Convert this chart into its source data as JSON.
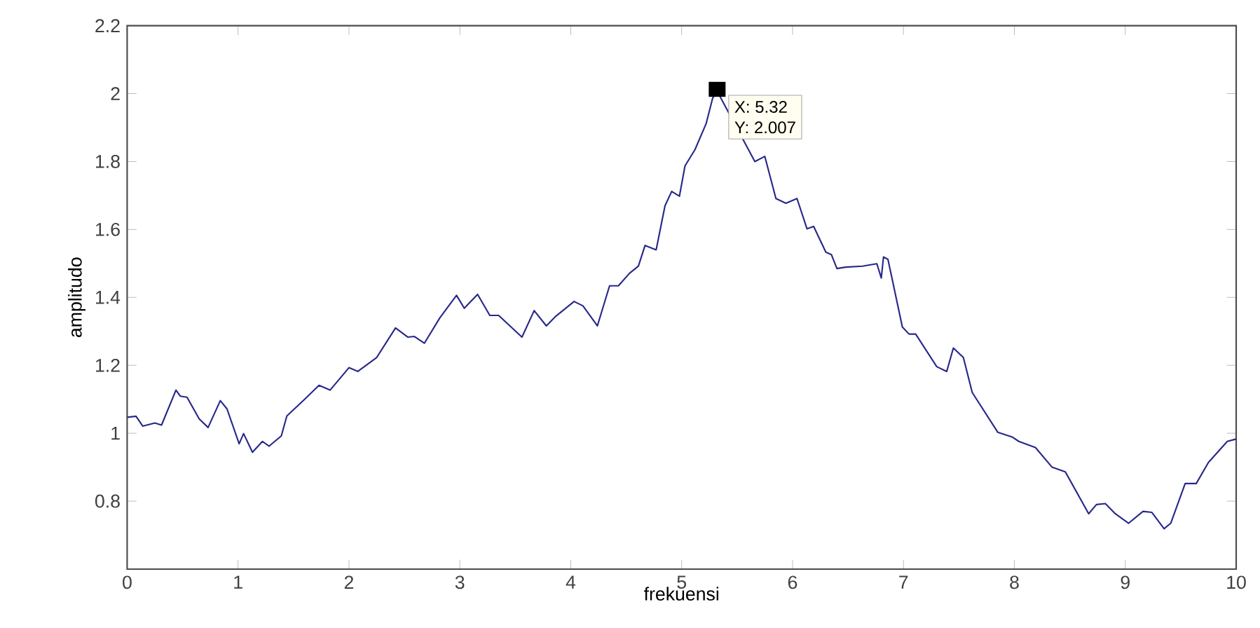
{
  "chart_data": {
    "type": "line",
    "xlabel": "frekuensi",
    "ylabel": "amplitudo",
    "color": "#27288a",
    "x": [
      0,
      0.08,
      0.14,
      0.25,
      0.31,
      0.44,
      0.48,
      0.54,
      0.65,
      0.73,
      0.84,
      0.9,
      1.01,
      1.05,
      1.13,
      1.22,
      1.28,
      1.39,
      1.44,
      1.6,
      1.73,
      1.83,
      2.0,
      2.08,
      2.25,
      2.42,
      2.53,
      2.59,
      2.68,
      2.82,
      2.97,
      3.04,
      3.16,
      3.27,
      3.35,
      3.56,
      3.67,
      3.78,
      3.86,
      4.03,
      4.11,
      4.24,
      4.35,
      4.43,
      4.53,
      4.61,
      4.67,
      4.77,
      4.85,
      4.91,
      4.98,
      5.03,
      5.12,
      5.22,
      5.28,
      5.32,
      5.66,
      5.75,
      5.85,
      5.94,
      6.04,
      6.13,
      6.19,
      6.3,
      6.35,
      6.4,
      6.48,
      6.63,
      6.76,
      6.8,
      6.82,
      6.86,
      6.99,
      7.05,
      7.11,
      7.3,
      7.39,
      7.45,
      7.54,
      7.62,
      7.85,
      7.98,
      8.04,
      8.19,
      8.34,
      8.46,
      8.67,
      8.74,
      8.82,
      8.91,
      9.03,
      9.16,
      9.24,
      9.35,
      9.41,
      9.54,
      9.64,
      9.75,
      9.92,
      10.0
    ],
    "values": [
      1.047,
      1.05,
      1.021,
      1.03,
      1.024,
      1.127,
      1.109,
      1.106,
      1.042,
      1.017,
      1.096,
      1.072,
      0.969,
      0.999,
      0.944,
      0.976,
      0.962,
      0.992,
      1.051,
      1.1,
      1.141,
      1.127,
      1.193,
      1.182,
      1.223,
      1.31,
      1.283,
      1.285,
      1.265,
      1.34,
      1.406,
      1.368,
      1.409,
      1.347,
      1.347,
      1.283,
      1.361,
      1.316,
      1.343,
      1.388,
      1.375,
      1.316,
      1.434,
      1.434,
      1.471,
      1.492,
      1.553,
      1.54,
      1.67,
      1.712,
      1.698,
      1.787,
      1.835,
      1.911,
      1.987,
      2.007,
      1.8,
      1.815,
      1.691,
      1.677,
      1.691,
      1.602,
      1.609,
      1.533,
      1.526,
      1.485,
      1.489,
      1.492,
      1.499,
      1.457,
      1.519,
      1.512,
      1.313,
      1.292,
      1.292,
      1.196,
      1.182,
      1.251,
      1.223,
      1.12,
      1.003,
      0.989,
      0.976,
      0.958,
      0.9,
      0.886,
      0.763,
      0.79,
      0.793,
      0.763,
      0.735,
      0.77,
      0.767,
      0.719,
      0.735,
      0.852,
      0.852,
      0.914,
      0.976,
      0.983
    ],
    "xlim": [
      0,
      10
    ],
    "ylim": [
      0.6,
      2.2
    ],
    "xticks": [
      0,
      1,
      2,
      3,
      4,
      5,
      6,
      7,
      8,
      9,
      10
    ],
    "yticks": [
      0.8,
      1,
      1.2,
      1.4,
      1.6,
      1.8,
      2,
      2.2
    ],
    "annotations": [
      {
        "text": "X: 5.32",
        "x": 5.32,
        "y": 2.007
      },
      "Y: 2.007"
    ]
  }
}
